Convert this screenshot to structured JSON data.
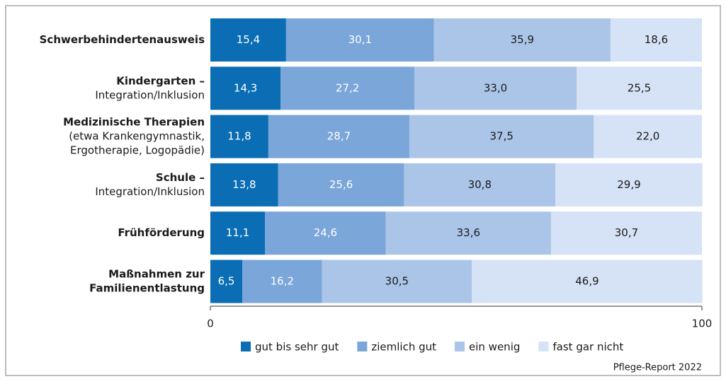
{
  "chart_data": {
    "type": "stacked-bar-horizontal",
    "categories": [
      {
        "bold": [
          "Schwerbehindertenausweis"
        ],
        "normal": []
      },
      {
        "bold": [
          "Kindergarten –"
        ],
        "normal": [
          "Integration/Inklusion"
        ]
      },
      {
        "bold": [
          "Medizinische Therapien"
        ],
        "normal": [
          "(etwa Krankengymnastik,",
          "Ergotherapie, Logopädie)"
        ]
      },
      {
        "bold": [
          "Schule –"
        ],
        "normal": [
          "Integration/Inklusion"
        ]
      },
      {
        "bold": [
          "Frühförderung"
        ],
        "normal": []
      },
      {
        "bold": [
          "Maßnahmen zur",
          "Familienentlastung"
        ],
        "normal": []
      }
    ],
    "series": [
      {
        "name": "gut bis sehr gut",
        "color": "#0b6db4",
        "values": [
          15.4,
          14.3,
          11.8,
          13.8,
          11.1,
          6.5
        ],
        "value_labels": [
          "15,4",
          "14,3",
          "11,8",
          "13,8",
          "11,1",
          "6,5"
        ]
      },
      {
        "name": "ziemlich gut",
        "color": "#7aa6d9",
        "values": [
          30.1,
          27.2,
          28.7,
          25.6,
          24.6,
          16.2
        ],
        "value_labels": [
          "30,1",
          "27,2",
          "28,7",
          "25,6",
          "24,6",
          "16,2"
        ]
      },
      {
        "name": "ein wenig",
        "color": "#abc5e8",
        "values": [
          35.9,
          33.0,
          37.5,
          30.8,
          33.6,
          30.5
        ],
        "value_labels": [
          "35,9",
          "33,0",
          "37,5",
          "30,8",
          "33,6",
          "30,5"
        ]
      },
      {
        "name": "fast gar nicht",
        "color": "#d6e2f5",
        "values": [
          18.6,
          25.5,
          22.0,
          29.9,
          30.7,
          46.9
        ],
        "value_labels": [
          "18,6",
          "25,5",
          "22,0",
          "29,9",
          "30,7",
          "46,9"
        ]
      }
    ],
    "xlim": [
      0,
      100
    ],
    "xticks": [
      0,
      100
    ],
    "source": "Pflege-Report 2022"
  }
}
